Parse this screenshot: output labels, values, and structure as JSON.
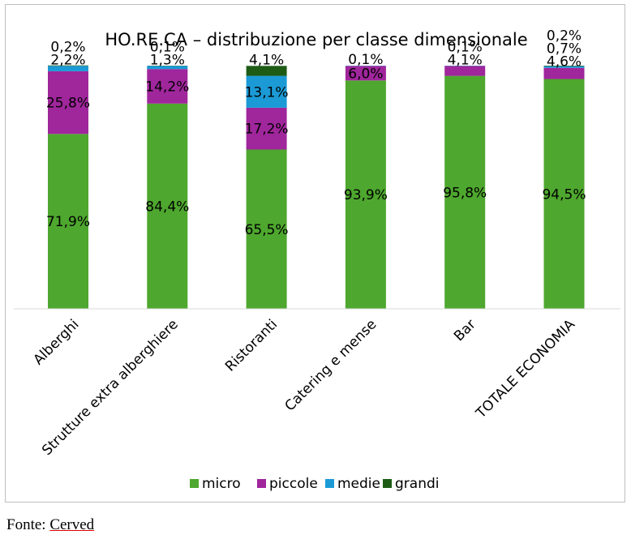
{
  "chart_data": {
    "type": "bar",
    "stacked": true,
    "percent": true,
    "title": "HO.RE.CA – distribuzione per classe dimensionale",
    "categories": [
      "Alberghi",
      "Strutture extra alberghiere",
      "Ristoranti",
      "Catering e mense",
      "Bar",
      "TOTALE ECONOMIA"
    ],
    "series": [
      {
        "name": "micro",
        "color": "#4ea72e",
        "values": [
          71.9,
          84.4,
          65.5,
          93.9,
          95.8,
          94.5
        ],
        "labels": [
          "71,9%",
          "84,4%",
          "65,5%",
          "93,9%",
          "95,8%",
          "94,5%"
        ]
      },
      {
        "name": "piccole",
        "color": "#a0269c",
        "values": [
          25.8,
          14.2,
          17.2,
          6.0,
          4.1,
          4.6
        ],
        "labels": [
          "25,8%",
          "14,2%",
          "17,2%",
          "6,0%",
          "4,1%",
          "4,6%"
        ]
      },
      {
        "name": "medie",
        "color": "#1b9ad6",
        "values": [
          2.2,
          1.3,
          13.1,
          0.1,
          0.1,
          0.7
        ],
        "labels": [
          "2,2%",
          "1,3%",
          "13,1%",
          "0,1%",
          "0,1%",
          "0,7%"
        ]
      },
      {
        "name": "grandi",
        "color": "#1e5c16",
        "values": [
          0.2,
          0.1,
          4.1,
          0.0,
          0.0,
          0.2
        ],
        "labels": [
          "0,2%",
          "0,1%",
          "4,1%",
          "",
          "",
          "0,2%"
        ]
      }
    ],
    "ylim": [
      0,
      100
    ],
    "legend": "bottom",
    "grid": false
  },
  "source": {
    "prefix": "Fonte: ",
    "name": "Cerved"
  }
}
